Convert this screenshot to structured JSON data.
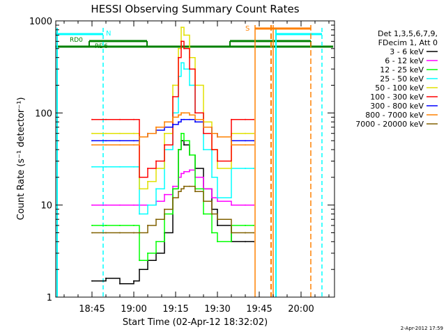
{
  "chart_data": {
    "type": "line",
    "title": "HESSI Observing Summary Count Rates",
    "xlabel": "Start Time (02-Apr-12 18:32:02)",
    "ylabel": "Count Rate (s⁻¹ detector⁻¹)",
    "yscale": "log",
    "ylim": [
      1,
      1000
    ],
    "xlim": [
      "18:32",
      "20:12"
    ],
    "x_ticks": [
      "18:45",
      "19:00",
      "19:15",
      "19:30",
      "19:45",
      "20:00"
    ],
    "y_ticks": [
      "1",
      "10",
      "100",
      "1000"
    ],
    "grid": false,
    "legend_position": "right",
    "legend_header": [
      "Det 1,3,5,6,7,9,",
      "FDecim 1, Att 0"
    ],
    "timestamp": "2-Apr-2012 17:59",
    "x": [
      "18:45",
      "18:50",
      "18:55",
      "19:00",
      "19:02",
      "19:05",
      "19:08",
      "19:11",
      "19:14",
      "19:16",
      "19:17",
      "19:18",
      "19:20",
      "19:22",
      "19:25",
      "19:28",
      "19:30",
      "19:35",
      "19:40",
      "19:43"
    ],
    "series": [
      {
        "name": "3 - 6 keV",
        "color": "#000000",
        "values": [
          1.5,
          1.6,
          1.4,
          1.5,
          2.0,
          2.5,
          3,
          5,
          15,
          40,
          50,
          45,
          35,
          25,
          15,
          9,
          6,
          4,
          4,
          4
        ]
      },
      {
        "name": "6 - 12 keV",
        "color": "#ff00ff",
        "values": [
          10,
          10,
          10,
          10,
          10,
          10,
          11,
          13,
          16,
          20,
          22,
          23,
          24,
          20,
          15,
          12,
          11,
          10,
          10,
          10
        ]
      },
      {
        "name": "12 - 25 keV",
        "color": "#00ff00",
        "values": [
          6,
          6,
          6,
          6,
          2.5,
          3,
          4,
          8,
          15,
          40,
          60,
          50,
          35,
          15,
          8,
          5,
          4,
          6,
          6,
          6
        ]
      },
      {
        "name": "25 - 50 keV",
        "color": "#00ffff",
        "values": [
          26,
          26,
          26,
          26,
          8,
          10,
          15,
          40,
          100,
          250,
          350,
          300,
          200,
          100,
          40,
          20,
          12,
          25,
          25,
          25
        ]
      },
      {
        "name": "50 - 100 keV",
        "color": "#e0e000",
        "values": [
          60,
          60,
          60,
          60,
          15,
          18,
          25,
          60,
          200,
          500,
          850,
          700,
          400,
          200,
          80,
          40,
          25,
          60,
          60,
          60
        ]
      },
      {
        "name": "100 - 300 keV",
        "color": "#ff0000",
        "values": [
          85,
          85,
          85,
          85,
          20,
          25,
          30,
          45,
          150,
          400,
          600,
          500,
          300,
          100,
          60,
          40,
          30,
          85,
          85,
          85
        ]
      },
      {
        "name": "300 - 800 keV",
        "color": "#0000ff",
        "values": [
          50,
          50,
          50,
          50,
          55,
          60,
          65,
          70,
          75,
          80,
          85,
          85,
          85,
          80,
          70,
          60,
          55,
          50,
          50,
          50
        ]
      },
      {
        "name": "800 - 7000 keV",
        "color": "#ff8000",
        "values": [
          45,
          45,
          45,
          45,
          55,
          60,
          70,
          80,
          90,
          95,
          100,
          100,
          95,
          85,
          70,
          60,
          55,
          45,
          45,
          45
        ]
      },
      {
        "name": "7000 - 20000 keV",
        "color": "#806000",
        "values": [
          5,
          5,
          5,
          5,
          5,
          6,
          7,
          9,
          12,
          14,
          15,
          16,
          16,
          14,
          11,
          8,
          7,
          5,
          5,
          5
        ]
      }
    ],
    "annotations": {
      "flags": [
        {
          "label": "RD0",
          "color": "#008000"
        },
        {
          "label": "RD6",
          "color": "#008000"
        },
        {
          "label": "N",
          "color": "#00ffff"
        },
        {
          "label": "S",
          "color": "#ff8000"
        }
      ]
    }
  }
}
